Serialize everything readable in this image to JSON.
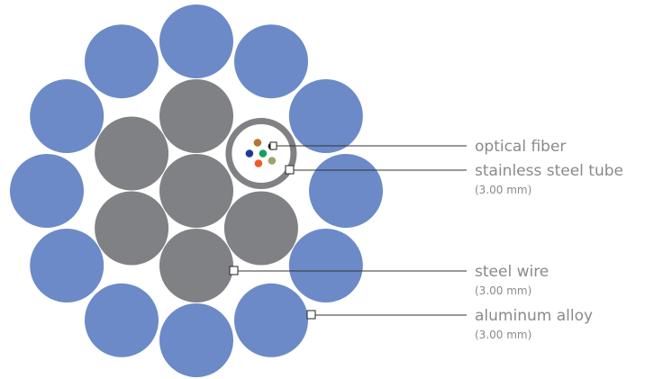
{
  "colors": {
    "aluminum_alloy": "#6b8ac7",
    "steel_wire": "#808184",
    "tube_ring": "#808184",
    "tube_interior": "#ffffff",
    "label_text": "#8a8a8a",
    "leader_line": "#333333",
    "fibers": [
      "#b87333",
      "#1a1a1a",
      "#1f3a93",
      "#16a05d",
      "#9aa56a",
      "#f05a28"
    ]
  },
  "components": {
    "outer_layer": {
      "count": 12
    },
    "inner_layer": {
      "steel_wires": 5,
      "tube_count": 1
    },
    "center": {
      "steel_wires": 1
    },
    "fiber_count": 6
  },
  "labels": [
    {
      "id": "optical-fiber",
      "title": "optical fiber",
      "spec": ""
    },
    {
      "id": "stainless-steel-tube",
      "title": "stainless steel tube",
      "spec": "(3.00 mm)"
    },
    {
      "id": "steel-wire",
      "title": "steel wire",
      "spec": "(3.00 mm)"
    },
    {
      "id": "aluminum-alloy",
      "title": "aluminum alloy",
      "spec": "(3.00 mm)"
    }
  ]
}
